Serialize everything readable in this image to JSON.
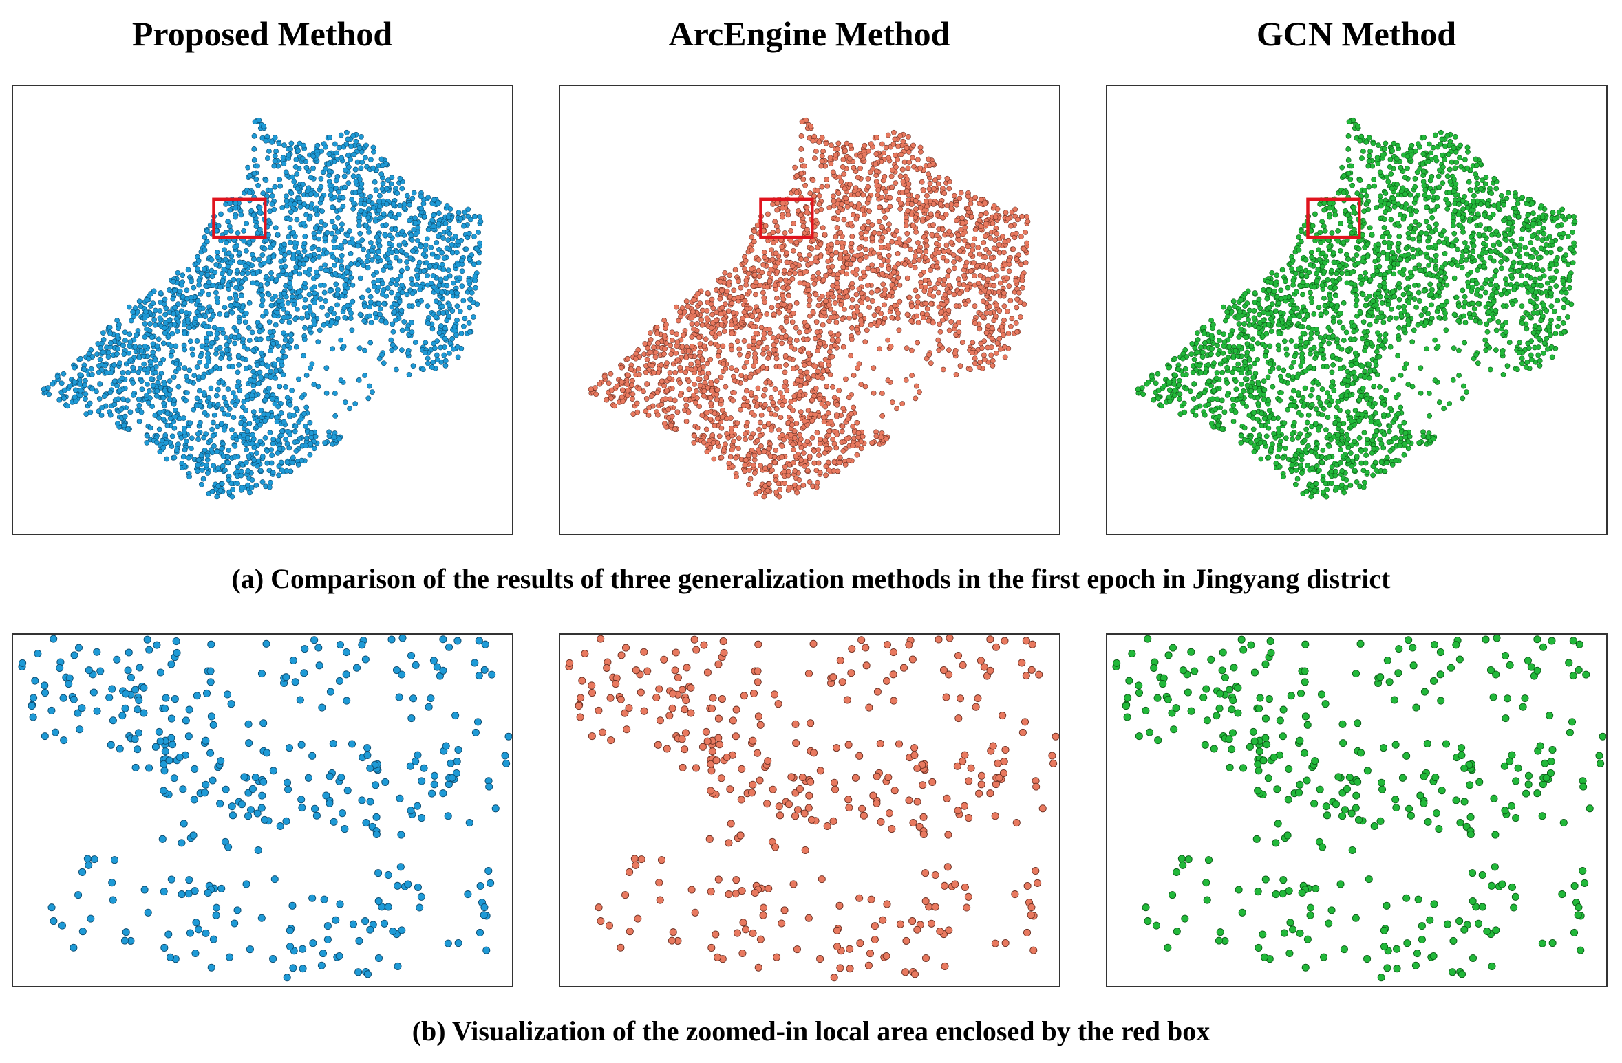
{
  "panels": [
    {
      "title": "Proposed Method"
    },
    {
      "title": "ArcEngine Method"
    },
    {
      "title": "GCN Method"
    }
  ],
  "captions": {
    "a": "(a) Comparison of the results of three generalization methods in the first epoch in Jingyang district",
    "b": "(b) Visualization of the zoomed-in local area enclosed by the red box"
  }
}
